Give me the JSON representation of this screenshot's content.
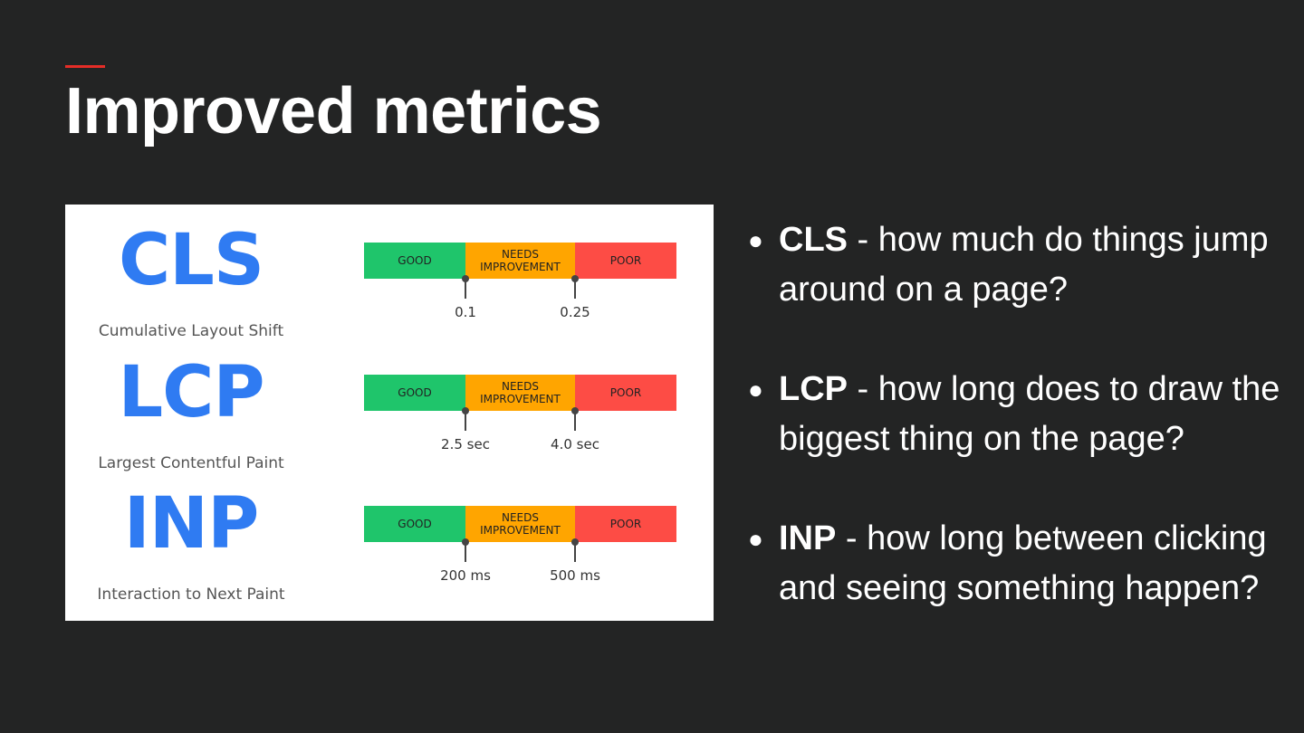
{
  "slide": {
    "title": "Improved metrics",
    "accent_color": "#e52d27",
    "background_color": "#232424"
  },
  "metrics": [
    {
      "abbr": "CLS",
      "name": "Cumulative Layout Shift",
      "segments": {
        "good": "GOOD",
        "needs": "NEEDS IMPROVEMENT",
        "poor": "POOR"
      },
      "thresholds": [
        "0.1",
        "0.25"
      ]
    },
    {
      "abbr": "LCP",
      "name": "Largest Contentful Paint",
      "segments": {
        "good": "GOOD",
        "needs": "NEEDS IMPROVEMENT",
        "poor": "POOR"
      },
      "thresholds": [
        "2.5 sec",
        "4.0 sec"
      ]
    },
    {
      "abbr": "INP",
      "name": "Interaction to Next Paint",
      "segments": {
        "good": "GOOD",
        "needs": "NEEDS IMPROVEMENT",
        "poor": "POOR"
      },
      "thresholds": [
        "200 ms",
        "500 ms"
      ]
    }
  ],
  "colors": {
    "metric_blue": "#2f7bf2",
    "good_green": "#1fc56b",
    "needs_orange": "#ffa500",
    "poor_red": "#fd4c45"
  },
  "bullets": [
    {
      "term": "CLS",
      "text": " - how much do things jump around on a page?"
    },
    {
      "term": "LCP",
      "text": " - how long does to draw the biggest thing on the page?"
    },
    {
      "term": "INP",
      "text": " - how long between clicking and seeing something happen?"
    }
  ],
  "bullet_glyph": "●"
}
